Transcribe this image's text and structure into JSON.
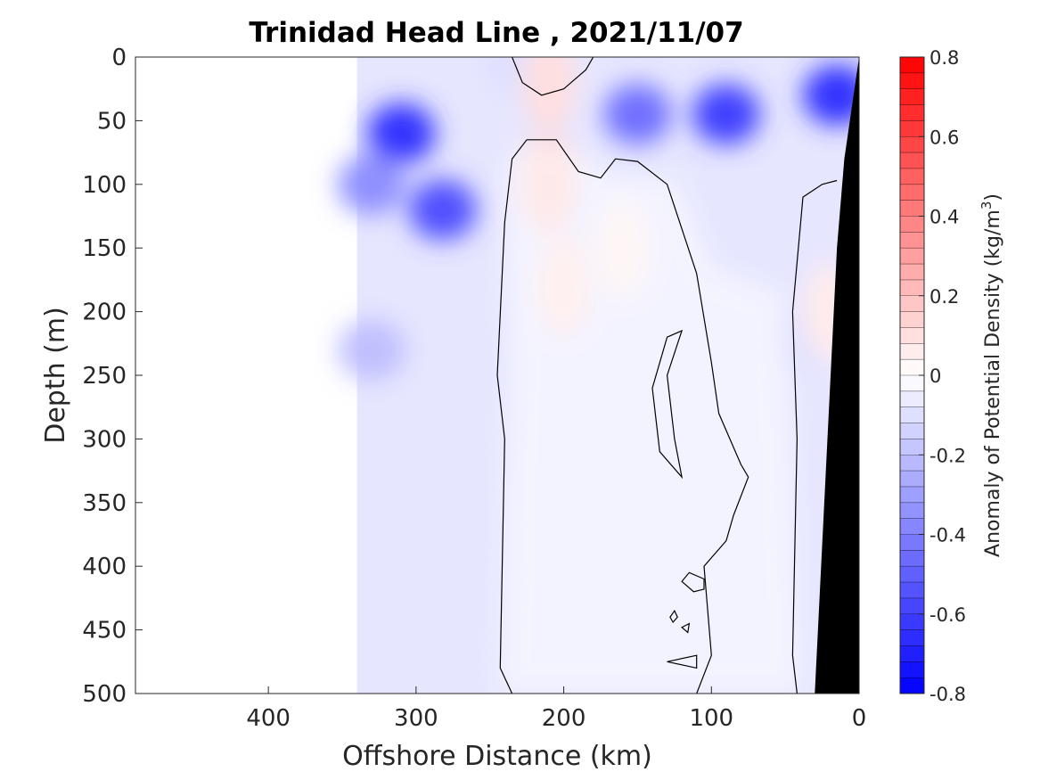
{
  "chart_data": {
    "type": "contourf",
    "title": "Trinidad Head Line , 2021/11/07",
    "xlabel": "Offshore Distance (km)",
    "ylabel": "Depth (m)",
    "x_range": [
      490,
      0
    ],
    "x_reversed": true,
    "y_range": [
      0,
      500
    ],
    "y_reversed": true,
    "x_ticks": [
      400,
      300,
      200,
      100,
      0
    ],
    "y_ticks": [
      0,
      50,
      100,
      150,
      200,
      250,
      300,
      350,
      400,
      450,
      500
    ],
    "data_x_extent": [
      0,
      340
    ],
    "colorbar": {
      "label": "Anomaly of Potential Density (kg/m",
      "label_sup": "3",
      "label_close": ")",
      "range": [
        -0.8,
        0.8
      ],
      "levels": 40,
      "ticks": [
        0.8,
        0.6,
        0.4,
        0.2,
        0,
        -0.2,
        -0.4,
        -0.6,
        -0.8
      ],
      "tick_labels": [
        "0.8",
        "0.6",
        "0.4",
        "0.2",
        "0",
        "-0.2",
        "-0.4",
        "-0.6",
        "-0.8"
      ],
      "colormap": "blue-white-red",
      "low_color": "#0000ff",
      "mid_color": "#ffffff",
      "high_color": "#ff0000"
    },
    "zero_contour": "black",
    "bathymetry_color": "#000000",
    "features": [
      {
        "kind": "negative",
        "x": 310,
        "y": 60,
        "value": -0.65
      },
      {
        "kind": "negative",
        "x": 282,
        "y": 120,
        "value": -0.55
      },
      {
        "kind": "negative",
        "x": 330,
        "y": 100,
        "value": -0.35
      },
      {
        "kind": "negative",
        "x": 330,
        "y": 230,
        "value": -0.2
      },
      {
        "kind": "negative",
        "x": 230,
        "y": 5,
        "value": -0.1
      },
      {
        "kind": "negative",
        "x": 150,
        "y": 45,
        "value": -0.45
      },
      {
        "kind": "negative",
        "x": 90,
        "y": 45,
        "value": -0.6
      },
      {
        "kind": "negative",
        "x": 15,
        "y": 30,
        "value": -0.65
      },
      {
        "kind": "negative",
        "x": 40,
        "y": 220,
        "value": -0.1
      },
      {
        "kind": "positive",
        "x": 210,
        "y": 20,
        "value": 0.1
      },
      {
        "kind": "positive",
        "x": 210,
        "y": 100,
        "value": 0.15
      },
      {
        "kind": "positive",
        "x": 200,
        "y": 180,
        "value": 0.1
      },
      {
        "kind": "positive",
        "x": 160,
        "y": 150,
        "value": 0.06
      },
      {
        "kind": "positive",
        "x": 20,
        "y": 200,
        "value": 0.06
      }
    ]
  }
}
